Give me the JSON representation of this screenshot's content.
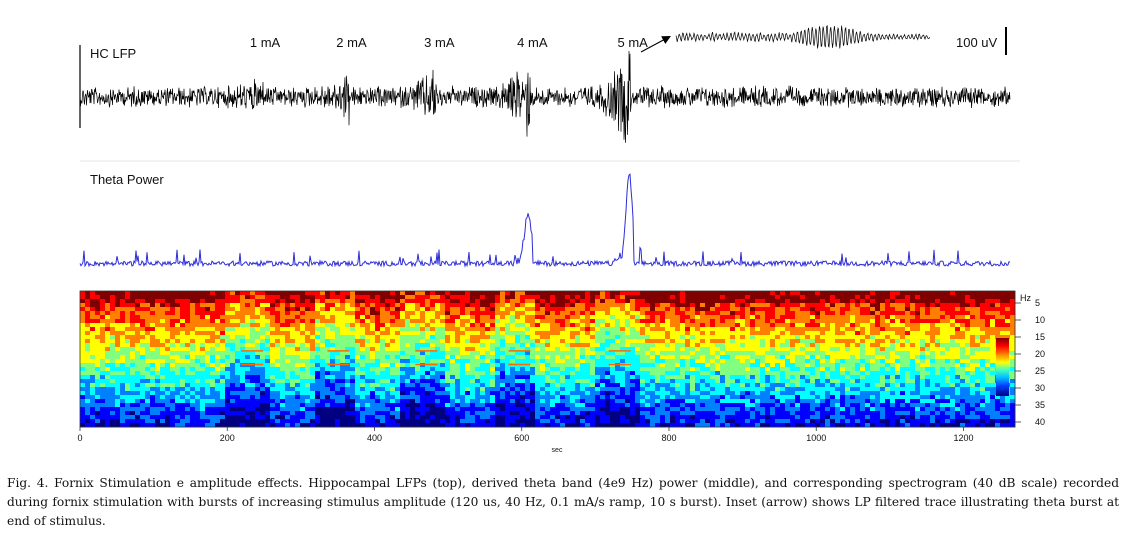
{
  "figure": {
    "lfp_label": "HC LFP",
    "theta_label": "Theta Power",
    "scale_bar_label": "100 uV",
    "stimulus_labels": [
      "1 mA",
      "2 mA",
      "3 mA",
      "4 mA",
      "5 mA"
    ],
    "stimulus_times_sec": [
      250,
      368,
      488,
      615,
      752
    ],
    "x_axis": {
      "label": "sec",
      "range": [
        0,
        1270
      ],
      "ticks": [
        0,
        200,
        400,
        600,
        800,
        1000,
        1200
      ],
      "tick_labels": [
        "0",
        "200",
        "400",
        "600",
        "800",
        "1000",
        "1200"
      ]
    },
    "spectrogram": {
      "unit_label": "Hz",
      "range_hz": [
        0,
        40
      ],
      "ticks_hz": [
        5,
        10,
        15,
        20,
        25,
        30,
        35,
        40
      ],
      "tick_labels": [
        "5",
        "10",
        "15",
        "20",
        "25",
        "30",
        "35",
        "40"
      ],
      "scale_db": 40,
      "colormap": [
        "#000080",
        "#0000ff",
        "#0080ff",
        "#00ffff",
        "#80ff80",
        "#ffff00",
        "#ff8000",
        "#ff0000",
        "#800000"
      ]
    },
    "trace_colors": {
      "lfp": "#000000",
      "theta": "#2d2dd6",
      "arrow": "#000000"
    }
  },
  "caption": {
    "text": "Fig. 4. Fornix Stimulation e amplitude effects. Hippocampal LFPs (top), derived theta band (4e9 Hz) power (middle), and corresponding spectrogram (40 dB scale) recorded during fornix stimulation with bursts of increasing stimulus amplitude (120 us, 40 Hz, 0.1 mA/s ramp, 10 s burst). Inset (arrow) shows LP filtered trace illustrating theta burst at end of stimulus."
  }
}
